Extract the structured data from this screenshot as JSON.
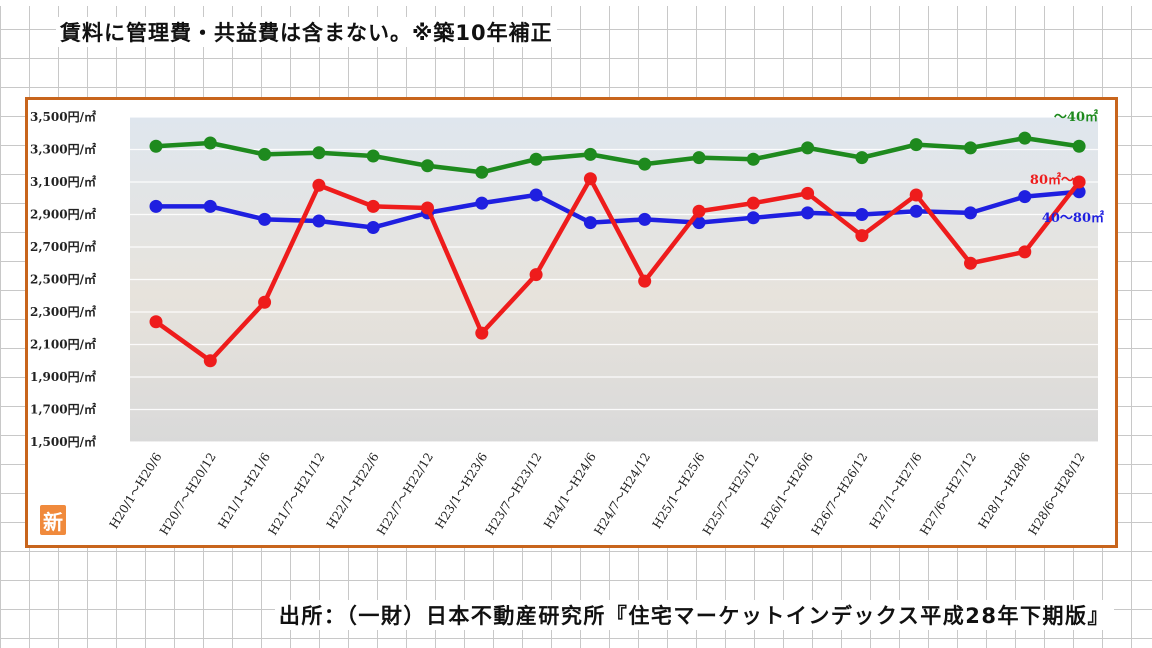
{
  "note": "賃料に管理費・共益費は含まない。※築10年補正",
  "source": "出所：（一財）日本不動産研究所『住宅マーケットインデックス平成28年下期版』",
  "badge": "新",
  "chart_data": {
    "type": "line",
    "yticks": [
      "3,500円/㎡",
      "3,300円/㎡",
      "3,100円/㎡",
      "2,900円/㎡",
      "2,700円/㎡",
      "2,500円/㎡",
      "2,300円/㎡",
      "2,100円/㎡",
      "1,900円/㎡",
      "1,700円/㎡",
      "1,500円/㎡"
    ],
    "ylim": [
      1500,
      3500
    ],
    "x": [
      "H20/1～H20/6",
      "H20/7～H20/12",
      "H21/1～H21/6",
      "H21/7～H21/12",
      "H22/1～H22/6",
      "H22/7～H22/12",
      "H23/1～H23/6",
      "H23/7～H23/12",
      "H24/1～H24/6",
      "H24/7～H24/12",
      "H25/1～H25/6",
      "H25/7～H25/12",
      "H26/1～H26/6",
      "H26/7～H26/12",
      "H27/1～H27/6",
      "H27/6～H27/12",
      "H28/1～H28/6",
      "H28/6～H28/12"
    ],
    "grid": true,
    "series": [
      {
        "name": "～40㎡",
        "color": "#1e8a1e",
        "values": [
          3320,
          3340,
          3270,
          3280,
          3260,
          3200,
          3160,
          3240,
          3270,
          3210,
          3250,
          3240,
          3310,
          3250,
          3330,
          3310,
          3370,
          3320
        ]
      },
      {
        "name": "40～80㎡",
        "color": "#1f1fe0",
        "values": [
          2950,
          2950,
          2870,
          2860,
          2820,
          2910,
          2970,
          3020,
          2850,
          2870,
          2850,
          2880,
          2910,
          2900,
          2920,
          2910,
          3010,
          3040
        ]
      },
      {
        "name": "80㎡～",
        "color": "#ee1c1c",
        "values": [
          2240,
          2000,
          2360,
          3080,
          2950,
          2940,
          2170,
          2530,
          3120,
          2490,
          2920,
          2970,
          3030,
          2770,
          3020,
          2600,
          2670,
          3100
        ]
      }
    ]
  }
}
